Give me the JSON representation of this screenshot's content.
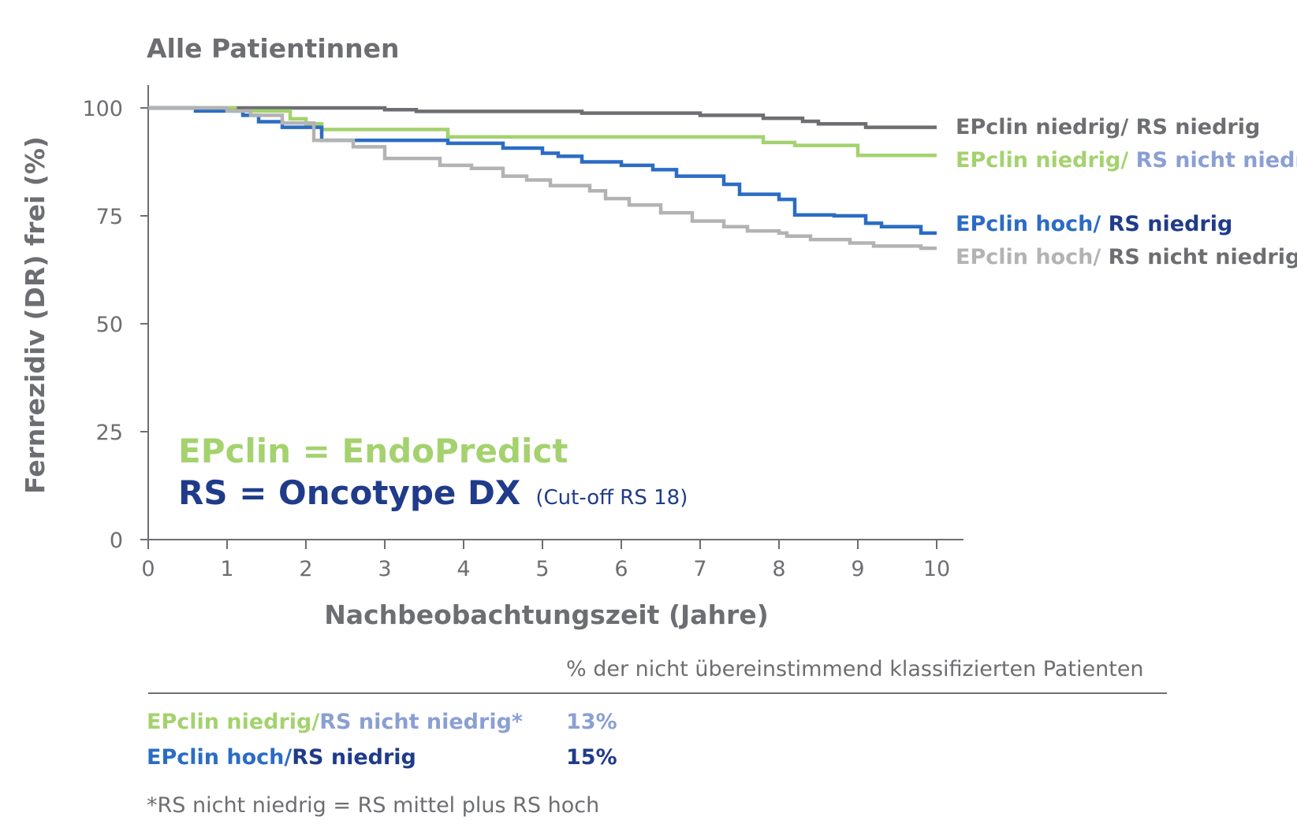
{
  "chart_data": {
    "type": "line",
    "title": "Alle Patientinnen",
    "xlabel": "Nachbeobachtungszeit (Jahre)",
    "ylabel": "Fernrezidiv (DR) frei (%)",
    "xlim": [
      0,
      10
    ],
    "ylim": [
      0,
      100
    ],
    "x_ticks": [
      "0",
      "1",
      "2",
      "3",
      "4",
      "5",
      "6",
      "7",
      "8",
      "9",
      "10"
    ],
    "y_ticks": [
      "0",
      "25",
      "50",
      "75",
      "100"
    ],
    "grid": false,
    "legend_position": "right",
    "series": [
      {
        "name": "EPclin niedrig/ RS niedrig",
        "label_parts": [
          {
            "text": "EPclin niedrig/ ",
            "color": "#6d6e71"
          },
          {
            "text": "RS niedrig",
            "color": "#6d6e71"
          }
        ],
        "color": "#6d6e71",
        "points": [
          [
            0,
            100
          ],
          [
            3.0,
            99.6
          ],
          [
            3.4,
            99.2
          ],
          [
            5.5,
            98.8
          ],
          [
            7.0,
            98.3
          ],
          [
            7.8,
            97.6
          ],
          [
            8.3,
            96.9
          ],
          [
            8.5,
            96.3
          ],
          [
            9.1,
            95.5
          ],
          [
            10.0,
            95.5
          ]
        ]
      },
      {
        "name": "EPclin niedrig/ RS nicht niedrig",
        "label_parts": [
          {
            "text": "EPclin niedrig/ ",
            "color": "#a4d26e"
          },
          {
            "text": "RS nicht niedrig",
            "color": "#8a9fd4"
          }
        ],
        "color": "#a4d26e",
        "points": [
          [
            0,
            100
          ],
          [
            1.1,
            99.3
          ],
          [
            1.8,
            97.5
          ],
          [
            2.0,
            96.3
          ],
          [
            2.2,
            95.0
          ],
          [
            3.8,
            93.3
          ],
          [
            7.8,
            92.0
          ],
          [
            8.2,
            91.3
          ],
          [
            9.0,
            89.0
          ],
          [
            10.0,
            89.0
          ]
        ]
      },
      {
        "name": "EPclin hoch/ RS niedrig",
        "label_parts": [
          {
            "text": "EPclin hoch/ ",
            "color": "#2b6cc4"
          },
          {
            "text": "RS niedrig",
            "color": "#1f3b8a"
          }
        ],
        "color": "#2b6cc4",
        "points": [
          [
            0,
            100
          ],
          [
            0.6,
            99.3
          ],
          [
            1.2,
            98.3
          ],
          [
            1.4,
            96.8
          ],
          [
            1.7,
            95.5
          ],
          [
            2.2,
            92.5
          ],
          [
            3.8,
            91.8
          ],
          [
            4.5,
            90.7
          ],
          [
            5.0,
            89.5
          ],
          [
            5.2,
            88.8
          ],
          [
            5.5,
            87.5
          ],
          [
            6.0,
            86.7
          ],
          [
            6.4,
            85.7
          ],
          [
            6.7,
            84.2
          ],
          [
            7.3,
            82.3
          ],
          [
            7.5,
            80.0
          ],
          [
            8.0,
            78.8
          ],
          [
            8.2,
            75.2
          ],
          [
            8.7,
            75.0
          ],
          [
            9.1,
            73.3
          ],
          [
            9.3,
            72.5
          ],
          [
            9.8,
            71.0
          ],
          [
            10.0,
            71.0
          ]
        ]
      },
      {
        "name": "EPclin hoch/ RS nicht niedrig",
        "label_parts": [
          {
            "text": "EPclin hoch/ ",
            "color": "#b3b3b3"
          },
          {
            "text": "RS nicht niedrig",
            "color": "#6d6e71"
          }
        ],
        "color": "#b3b3b3",
        "points": [
          [
            0,
            100
          ],
          [
            1.0,
            99.3
          ],
          [
            1.3,
            98.3
          ],
          [
            1.7,
            96.5
          ],
          [
            2.1,
            92.5
          ],
          [
            2.6,
            91.0
          ],
          [
            3.0,
            88.3
          ],
          [
            3.7,
            86.7
          ],
          [
            4.1,
            86.0
          ],
          [
            4.5,
            84.2
          ],
          [
            4.8,
            83.3
          ],
          [
            5.1,
            82.0
          ],
          [
            5.6,
            80.8
          ],
          [
            5.8,
            79.0
          ],
          [
            6.1,
            77.5
          ],
          [
            6.5,
            75.7
          ],
          [
            6.9,
            73.8
          ],
          [
            7.3,
            72.5
          ],
          [
            7.6,
            71.5
          ],
          [
            8.0,
            71.0
          ],
          [
            8.1,
            70.3
          ],
          [
            8.4,
            69.5
          ],
          [
            8.9,
            68.7
          ],
          [
            9.2,
            68.0
          ],
          [
            9.8,
            67.5
          ],
          [
            10.0,
            67.5
          ]
        ]
      }
    ],
    "annotations": {
      "epclin_def": "EPclin = EndoPredict",
      "rs_def": "RS = Oncotype DX",
      "rs_cutoff": "(Cut-off RS 18)"
    },
    "table": {
      "header": "% der nicht übereinstimmend klassifizierten Patienten",
      "rows": [
        {
          "parts": [
            {
              "text": "EPclin niedrig/",
              "color": "#a4d26e"
            },
            {
              "text": "RS nicht niedrig*",
              "color": "#8a9fd4"
            }
          ],
          "value": "13%",
          "value_color": "#8a9fd4"
        },
        {
          "parts": [
            {
              "text": "EPclin hoch/",
              "color": "#2b6cc4"
            },
            {
              "text": "RS niedrig",
              "color": "#1f3b8a"
            }
          ],
          "value": "15%",
          "value_color": "#1f3b8a"
        }
      ],
      "footnote": "*RS nicht niedrig = RS mittel plus RS hoch"
    },
    "colors": {
      "axis": "#6d6e71",
      "green": "#a4d26e",
      "light_blue": "#8a9fd4",
      "blue": "#2b6cc4",
      "navy": "#1f3b8a",
      "dark_gray": "#6d6e71",
      "light_gray": "#b3b3b3"
    }
  }
}
